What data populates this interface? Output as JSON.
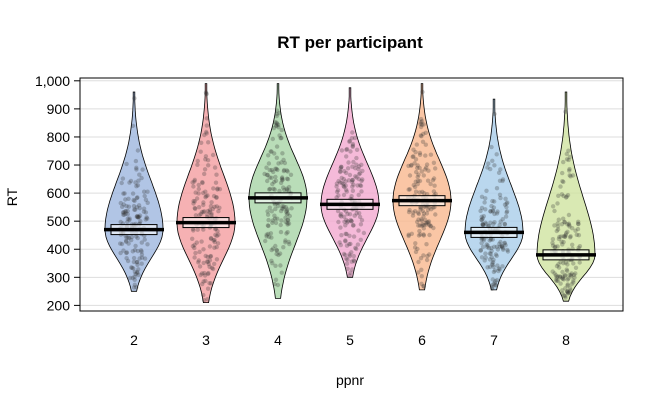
{
  "chart_data": {
    "type": "pirate",
    "title": "RT per participant",
    "xlabel": "ppnr",
    "ylabel": "RT",
    "ylim": [
      180,
      1010
    ],
    "y_ticks": [
      200,
      300,
      400,
      500,
      600,
      700,
      800,
      900,
      1000
    ],
    "y_tick_labels": [
      "200",
      "300",
      "400",
      "500",
      "600",
      "700",
      "800",
      "900",
      "1,000"
    ],
    "grid": true,
    "categories": [
      "2",
      "3",
      "4",
      "5",
      "6",
      "7",
      "8"
    ],
    "means": [
      470,
      495,
      583,
      560,
      573,
      460,
      380
    ],
    "ranges": [
      [
        250,
        960
      ],
      [
        210,
        990
      ],
      [
        225,
        990
      ],
      [
        300,
        975
      ],
      [
        255,
        990
      ],
      [
        255,
        935
      ],
      [
        215,
        960
      ]
    ],
    "colors": [
      "#9db7de",
      "#f49da0",
      "#a8d5a6",
      "#f3a9d0",
      "#f9b88e",
      "#a9cdea",
      "#cfe3a0"
    ]
  }
}
